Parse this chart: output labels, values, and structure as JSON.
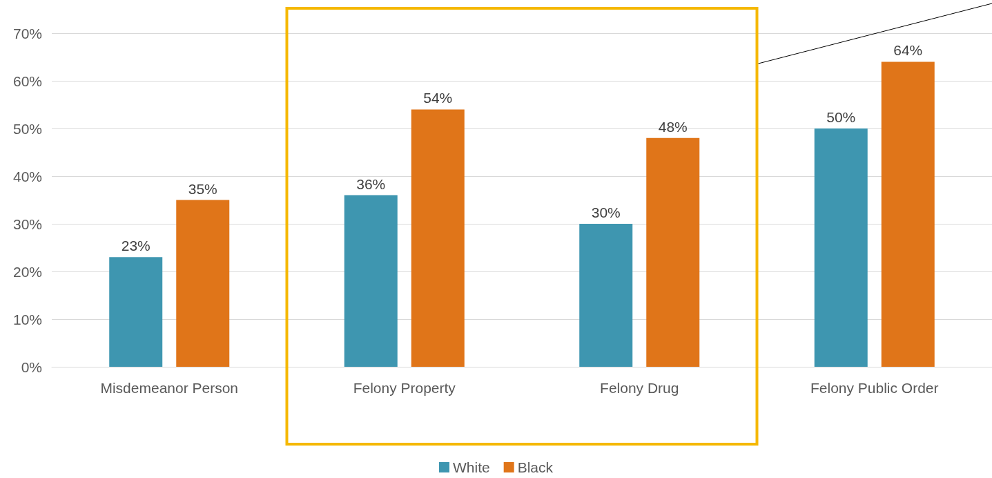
{
  "chart_data": {
    "type": "bar",
    "categories": [
      "Misdemeanor Person",
      "Felony Property",
      "Felony Drug",
      "Felony Public Order"
    ],
    "series": [
      {
        "name": "White",
        "color": "#3e96b0",
        "values": [
          23,
          36,
          30,
          50
        ],
        "value_labels": [
          "23%",
          "36%",
          "30%",
          "50%"
        ]
      },
      {
        "name": "Black",
        "color": "#e07519",
        "values": [
          35,
          54,
          48,
          64
        ],
        "value_labels": [
          "35%",
          "54%",
          "48%",
          "64%"
        ]
      }
    ],
    "ylim": [
      0,
      70
    ],
    "yticks": [
      {
        "value": 0,
        "label": "0%"
      },
      {
        "value": 10,
        "label": "10%"
      },
      {
        "value": 20,
        "label": "20%"
      },
      {
        "value": 30,
        "label": "30%"
      },
      {
        "value": 40,
        "label": "40%"
      },
      {
        "value": 50,
        "label": "50%"
      },
      {
        "value": 60,
        "label": "60%"
      },
      {
        "value": 70,
        "label": "70%"
      }
    ],
    "grid": "y",
    "legend": "bottom"
  }
}
